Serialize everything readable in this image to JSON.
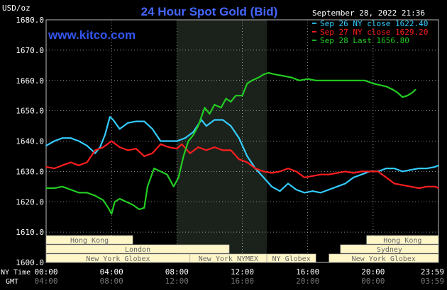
{
  "chart_data": {
    "type": "line",
    "title": "24 Hour Spot Gold (Bid)",
    "watermark": "www.kitco.com",
    "date_label": "September 28, 2022 21:36",
    "unit_label": "USD/oz",
    "ylim": [
      1600,
      1680
    ],
    "y_ticks": [
      "1680.0",
      "1670.0",
      "1660.0",
      "1650.0",
      "1640.0",
      "1630.0",
      "1620.0",
      "1610.0",
      "1600.0"
    ],
    "xlim": [
      0,
      24
    ],
    "ny_time_label": "NY Time",
    "gmt_label": "GMT",
    "x_ticks_ny": [
      "00:00",
      "04:00",
      "08:00",
      "12:00",
      "16:00",
      "20:00",
      "23:59"
    ],
    "x_ticks_gmt": [
      "04:00",
      "08:00",
      "12:00",
      "16:00",
      "20:00",
      "00:00",
      "03:59"
    ],
    "shaded_interval_hours": [
      8.0,
      13.5
    ],
    "sessions": [
      {
        "label": "Hong Kong",
        "row": 0,
        "segments": [
          [
            0,
            5.3
          ],
          [
            19.6,
            24
          ]
        ]
      },
      {
        "label": "London",
        "row": 1,
        "segments": [
          [
            0,
            11.2
          ]
        ]
      },
      {
        "label": "Sydney",
        "row": 1,
        "segments": [
          [
            18.0,
            24
          ]
        ]
      },
      {
        "label": "New York Globex",
        "row": 2,
        "segments": [
          [
            0,
            8.8
          ]
        ]
      },
      {
        "label": "New York NYMEX",
        "row": 2,
        "segments": [
          [
            8.8,
            13.5
          ]
        ]
      },
      {
        "label": "NY Globex",
        "row": 2,
        "segments": [
          [
            13.5,
            16.5
          ]
        ]
      },
      {
        "label": "New York Globex",
        "row": 2,
        "segments": [
          [
            17.3,
            24
          ]
        ]
      }
    ],
    "series": [
      {
        "name": "Sep 26 NY close 1622.40",
        "color": "#33CCFF",
        "x": [
          0,
          0.5,
          1,
          1.5,
          2,
          2.5,
          3,
          3.3,
          3.6,
          3.9,
          4.1,
          4.5,
          5,
          5.5,
          6,
          6.5,
          7,
          7.5,
          8,
          8.5,
          9,
          9.5,
          9.8,
          10.3,
          10.8,
          11.3,
          11.8,
          12.3,
          12.8,
          13.3,
          13.8,
          14.3,
          14.8,
          15.3,
          15.8,
          16.3,
          16.8,
          17.3,
          17.8,
          18.3,
          18.8,
          19.3,
          19.8,
          20.3,
          20.8,
          21.3,
          21.8,
          22.3,
          22.8,
          23.3,
          23.8,
          24
        ],
        "values": [
          1638.5,
          1640,
          1641,
          1641,
          1640,
          1638.5,
          1636,
          1638,
          1642,
          1648,
          1647,
          1644,
          1646,
          1646.5,
          1646.5,
          1644,
          1640,
          1640,
          1640,
          1641,
          1643,
          1647,
          1645,
          1647,
          1647,
          1645,
          1641,
          1635,
          1631,
          1628,
          1625,
          1623.5,
          1626,
          1624,
          1623,
          1623.5,
          1623,
          1624,
          1625,
          1626,
          1628,
          1629,
          1630,
          1630,
          1631,
          1631,
          1630,
          1630.5,
          1631,
          1631,
          1631.5,
          1632
        ]
      },
      {
        "name": "Sep 27 NY close 1629.20",
        "color": "#FF1E1E",
        "x": [
          0,
          0.5,
          1,
          1.5,
          2,
          2.5,
          3,
          3.5,
          4,
          4.5,
          5,
          5.5,
          6,
          6.5,
          7,
          7.5,
          8,
          8.3,
          8.8,
          9.3,
          9.8,
          10.3,
          10.8,
          11.3,
          11.8,
          12.3,
          12.8,
          13.3,
          13.8,
          14.3,
          14.8,
          15.3,
          15.8,
          16.3,
          16.8,
          17.3,
          17.8,
          18.3,
          18.8,
          19.3,
          19.8,
          20.3,
          20.8,
          21.3,
          21.8,
          22.3,
          22.8,
          23.3,
          23.8,
          24
        ],
        "values": [
          1631.5,
          1631,
          1632,
          1633,
          1632,
          1633,
          1637,
          1638,
          1640,
          1638,
          1637,
          1637.5,
          1635,
          1636,
          1639,
          1638,
          1637.5,
          1639,
          1636,
          1638,
          1637,
          1638,
          1637,
          1637,
          1634,
          1633,
          1631,
          1630,
          1629.5,
          1630,
          1631,
          1630,
          1628,
          1628.5,
          1629,
          1629,
          1629.5,
          1630,
          1629.5,
          1630,
          1630,
          1630,
          1628,
          1626,
          1625.5,
          1625,
          1624.5,
          1625,
          1625,
          1624.5
        ]
      },
      {
        "name": "Sep 28 Last 1656.80",
        "color": "#22CC22",
        "x": [
          0,
          0.5,
          1,
          1.5,
          2,
          2.5,
          3,
          3.5,
          3.8,
          4.0,
          4.2,
          4.5,
          4.9,
          5.3,
          5.7,
          6.0,
          6.2,
          6.6,
          7.0,
          7.4,
          7.8,
          8.1,
          8.4,
          8.7,
          9.0,
          9.3,
          9.7,
          10.0,
          10.3,
          10.7,
          11.0,
          11.3,
          11.6,
          12.0,
          12.3,
          12.6,
          13.0,
          13.3,
          13.6,
          14.0,
          14.5,
          15.0,
          15.5,
          16.0,
          16.5,
          17.0,
          17.5,
          18.0,
          18.5,
          19.0,
          19.5,
          20.0,
          20.4,
          20.8,
          21.2,
          21.5,
          21.8,
          22.1,
          22.4,
          22.6
        ],
        "values": [
          1624.5,
          1624.5,
          1625,
          1624,
          1623,
          1623,
          1622,
          1620.5,
          1618,
          1616,
          1620,
          1621,
          1620,
          1619,
          1617.5,
          1618,
          1625,
          1631,
          1630,
          1629,
          1625,
          1628,
          1635,
          1640,
          1642,
          1645,
          1651,
          1649,
          1652,
          1651,
          1654,
          1653,
          1655,
          1655,
          1659,
          1660,
          1661,
          1662,
          1662.5,
          1662,
          1661.5,
          1661,
          1660,
          1660.5,
          1660,
          1660,
          1660,
          1660,
          1660,
          1660,
          1660,
          1659,
          1658.5,
          1658,
          1657,
          1656,
          1654.5,
          1655,
          1656,
          1657
        ]
      }
    ]
  }
}
